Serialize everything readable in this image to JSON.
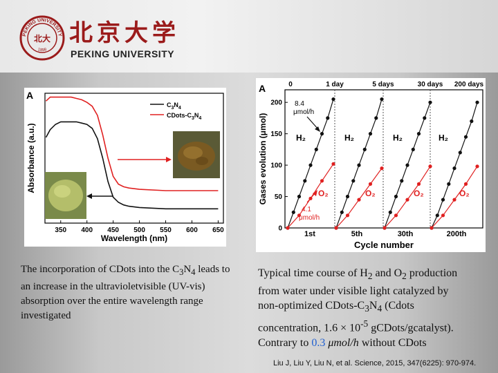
{
  "header": {
    "name_cn": "北京大学",
    "name_en": "PEKING UNIVERSITY",
    "seal_text": "PEKING UNIVERSITY",
    "seal_year": "1898",
    "seal_center": "北大"
  },
  "colors": {
    "red": "#e02020",
    "black": "#111111",
    "brand": "#9b1b1b",
    "highlight": "#1f5fd0"
  },
  "chart_data": [
    {
      "type": "line",
      "panel_label": "A",
      "xlabel": "Wavelength (nm)",
      "ylabel": "Absorbance (a.u.)",
      "xlim": [
        320,
        660
      ],
      "ylim": [
        0,
        1
      ],
      "xticks": [
        "350",
        "400",
        "450",
        "500",
        "550",
        "600",
        "650"
      ],
      "legend": [
        {
          "label": "C",
          "sub1": "3",
          "mid": "N",
          "sub2": "4",
          "color": "#111111"
        },
        {
          "label": "CDots-C",
          "sub1": "3",
          "mid": "N",
          "sub2": "4",
          "color": "#e02020"
        }
      ],
      "series": [
        {
          "name": "C3N4",
          "color": "#111111",
          "x": [
            322,
            330,
            340,
            350,
            360,
            370,
            380,
            390,
            400,
            410,
            420,
            430,
            440,
            450,
            460,
            470,
            480,
            500,
            550,
            600,
            650
          ],
          "y": [
            0.66,
            0.72,
            0.76,
            0.78,
            0.78,
            0.78,
            0.78,
            0.77,
            0.76,
            0.73,
            0.65,
            0.5,
            0.32,
            0.2,
            0.16,
            0.14,
            0.13,
            0.12,
            0.11,
            0.11,
            0.11
          ]
        },
        {
          "name": "CDots-C3N4",
          "color": "#e02020",
          "x": [
            322,
            330,
            340,
            350,
            360,
            370,
            380,
            390,
            400,
            410,
            420,
            430,
            440,
            450,
            460,
            470,
            480,
            500,
            550,
            600,
            650
          ],
          "y": [
            0.94,
            0.97,
            0.97,
            0.97,
            0.97,
            0.97,
            0.96,
            0.95,
            0.93,
            0.9,
            0.83,
            0.68,
            0.5,
            0.36,
            0.3,
            0.28,
            0.27,
            0.26,
            0.25,
            0.25,
            0.25
          ]
        }
      ]
    },
    {
      "type": "scatter",
      "panel_label": "A",
      "xlabel": "Cycle number",
      "ylabel": "Gases evolution (μmol)",
      "ylim": [
        0,
        220
      ],
      "yticks": [
        "0",
        "50",
        "100",
        "150",
        "200"
      ],
      "top_labels": [
        "0",
        "1 day",
        "5 days",
        "30 days",
        "200 days"
      ],
      "cycle_labels": [
        "1st",
        "5th",
        "30th",
        "200th"
      ],
      "gas_labels": {
        "h2": "H₂",
        "o2": "O₂"
      },
      "rate_h2": {
        "value": "8.4",
        "unit": "μmol/h"
      },
      "rate_o2": {
        "value": "4.1",
        "unit": "μmol/h"
      },
      "series": [
        {
          "name": "H2 cycle 1",
          "color": "#111111",
          "t": [
            0,
            1,
            2,
            3,
            4,
            5,
            6,
            7,
            8
          ],
          "y": [
            0,
            25,
            50,
            75,
            100,
            125,
            150,
            175,
            205
          ]
        },
        {
          "name": "O2 cycle 1",
          "color": "#e02020",
          "t": [
            0,
            2,
            4,
            6,
            8
          ],
          "y": [
            0,
            20,
            47,
            75,
            102
          ]
        },
        {
          "name": "H2 cycle 5",
          "color": "#111111",
          "t": [
            0,
            1,
            2,
            3,
            4,
            5,
            6,
            7,
            8
          ],
          "y": [
            0,
            25,
            50,
            75,
            100,
            125,
            150,
            175,
            205
          ]
        },
        {
          "name": "O2 cycle 5",
          "color": "#e02020",
          "t": [
            0,
            2,
            4,
            6,
            8
          ],
          "y": [
            0,
            20,
            45,
            70,
            95
          ]
        },
        {
          "name": "H2 cycle 30",
          "color": "#111111",
          "t": [
            0,
            1,
            2,
            3,
            4,
            5,
            6,
            7,
            8
          ],
          "y": [
            0,
            25,
            50,
            75,
            100,
            125,
            150,
            175,
            200
          ]
        },
        {
          "name": "O2 cycle 30",
          "color": "#e02020",
          "t": [
            0,
            2,
            4,
            6,
            8
          ],
          "y": [
            0,
            20,
            45,
            70,
            98
          ]
        },
        {
          "name": "H2 cycle 200",
          "color": "#111111",
          "t": [
            0,
            1,
            2,
            3,
            4,
            5,
            6,
            7,
            8
          ],
          "y": [
            0,
            20,
            45,
            70,
            95,
            120,
            145,
            170,
            200
          ]
        },
        {
          "name": "O2 cycle 200",
          "color": "#e02020",
          "t": [
            0,
            2,
            4,
            6,
            8
          ],
          "y": [
            0,
            20,
            45,
            70,
            98
          ]
        }
      ]
    }
  ],
  "caption_left": {
    "part1": "The incorporation of CDots into the C",
    "sub1": "3",
    "part2": "N",
    "sub2": "4",
    "part3": " leads to an increase in the ultravioletvisible (UV-vis) absorption over the entire wavelength range investigated"
  },
  "caption_right": {
    "line1_a": "Typical time course of H",
    "line1_sub": "2",
    "line1_b": " and O",
    "line1_sub2": "2",
    "line1_c": " production",
    "line2": "from water under visible light catalyzed by",
    "line3_a": "non-optimized  CDots-C",
    "line3_sub": "3",
    "line3_b": "N",
    "line3_sub2": "4",
    "line3_c": " (Cdots",
    "line4_a": "concentration, 1.6 × 10",
    "line4_sup": "-5",
    "line4_b": " gCDots/gcatalyst).",
    "line5_a": "Contrary to ",
    "line5_value": "0.3",
    "line5_unit": "μmol/h",
    "line5_b": " without CDots"
  },
  "citation": "Liu J, Liu Y, Liu N, et al. Science, 2015, 347(6225): 970-974."
}
